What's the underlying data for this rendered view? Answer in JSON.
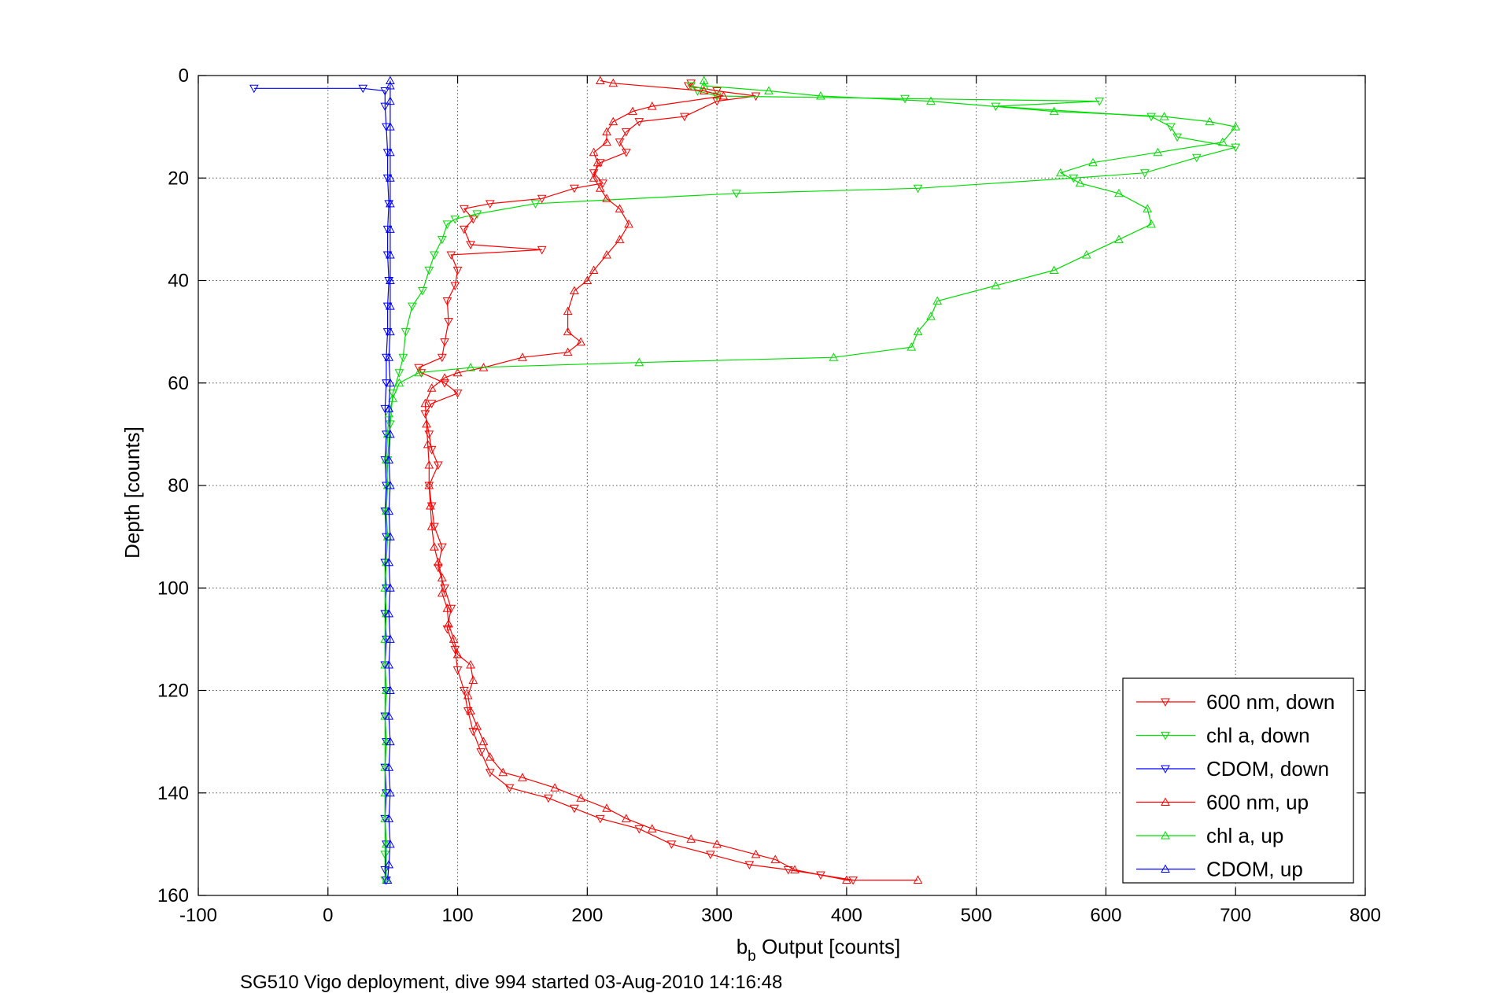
{
  "chart_data": {
    "type": "line",
    "title": "",
    "xlabel": "b",
    "xlabel_sub": "b",
    "xlabel_rest": " Output [counts]",
    "ylabel": "Depth [counts]",
    "caption": "SG510 Vigo deployment, dive 994 started 03-Aug-2010 14:16:48",
    "xlim": [
      -100,
      800
    ],
    "ylim": [
      0,
      160
    ],
    "y_reversed": true,
    "grid": true,
    "legend_position": "bottom-right",
    "xticks": [
      -100,
      0,
      100,
      200,
      300,
      400,
      500,
      600,
      700,
      800
    ],
    "yticks": [
      0,
      20,
      40,
      60,
      80,
      100,
      120,
      140,
      160
    ],
    "series": [
      {
        "name": "600 nm, down",
        "color": "#ff0000",
        "marker": "triangle-down",
        "points": [
          [
            280,
            1.5
          ],
          [
            278,
            2
          ],
          [
            300,
            3
          ],
          [
            330,
            4
          ],
          [
            300,
            5
          ],
          [
            275,
            8
          ],
          [
            240,
            9
          ],
          [
            230,
            11
          ],
          [
            225,
            13
          ],
          [
            230,
            15
          ],
          [
            210,
            17
          ],
          [
            205,
            19
          ],
          [
            212,
            21
          ],
          [
            190,
            22
          ],
          [
            165,
            24
          ],
          [
            125,
            25
          ],
          [
            105,
            26
          ],
          [
            112,
            28
          ],
          [
            105,
            30
          ],
          [
            110,
            33
          ],
          [
            165,
            34
          ],
          [
            95,
            35
          ],
          [
            100,
            38
          ],
          [
            98,
            41
          ],
          [
            92,
            44
          ],
          [
            93,
            48
          ],
          [
            90,
            52
          ],
          [
            88,
            55
          ],
          [
            70,
            57
          ],
          [
            72,
            58
          ],
          [
            90,
            60
          ],
          [
            100,
            62
          ],
          [
            80,
            64
          ],
          [
            75,
            66
          ],
          [
            78,
            70
          ],
          [
            80,
            73
          ],
          [
            85,
            76
          ],
          [
            78,
            80
          ],
          [
            80,
            84
          ],
          [
            82,
            88
          ],
          [
            88,
            92
          ],
          [
            85,
            96
          ],
          [
            90,
            100
          ],
          [
            95,
            104
          ],
          [
            92,
            108
          ],
          [
            98,
            112
          ],
          [
            100,
            116
          ],
          [
            105,
            120
          ],
          [
            108,
            124
          ],
          [
            112,
            128
          ],
          [
            118,
            132
          ],
          [
            125,
            136
          ],
          [
            140,
            139
          ],
          [
            170,
            141
          ],
          [
            190,
            143
          ],
          [
            210,
            145
          ],
          [
            240,
            147
          ],
          [
            265,
            150
          ],
          [
            295,
            152
          ],
          [
            325,
            154
          ],
          [
            355,
            155
          ],
          [
            380,
            156
          ],
          [
            405,
            157
          ]
        ]
      },
      {
        "name": "chl a, down",
        "color": "#00dd00",
        "marker": "triangle-down",
        "points": [
          [
            280,
            2
          ],
          [
            285,
            3
          ],
          [
            300,
            4
          ],
          [
            445,
            4.5
          ],
          [
            595,
            5
          ],
          [
            515,
            6
          ],
          [
            635,
            8
          ],
          [
            650,
            10
          ],
          [
            655,
            12
          ],
          [
            700,
            14
          ],
          [
            670,
            16
          ],
          [
            630,
            19
          ],
          [
            575,
            20
          ],
          [
            455,
            22
          ],
          [
            315,
            23
          ],
          [
            160,
            25
          ],
          [
            115,
            27
          ],
          [
            98,
            28
          ],
          [
            92,
            29
          ],
          [
            88,
            32
          ],
          [
            82,
            35
          ],
          [
            78,
            38
          ],
          [
            73,
            42
          ],
          [
            65,
            45
          ],
          [
            60,
            50
          ],
          [
            58,
            55
          ],
          [
            55,
            58
          ],
          [
            50,
            62
          ],
          [
            48,
            68
          ],
          [
            46,
            75
          ],
          [
            45,
            85
          ],
          [
            44,
            95
          ],
          [
            44,
            105
          ],
          [
            44,
            115
          ],
          [
            44,
            125
          ],
          [
            44,
            135
          ],
          [
            44,
            145
          ],
          [
            44,
            152
          ],
          [
            44,
            157
          ]
        ]
      },
      {
        "name": "CDOM, down",
        "color": "#0000ff",
        "marker": "triangle-down",
        "points": [
          [
            -57,
            2.5
          ],
          [
            27,
            2.5
          ],
          [
            44,
            3
          ],
          [
            44,
            6
          ],
          [
            45,
            10
          ],
          [
            46,
            15
          ],
          [
            46,
            20
          ],
          [
            47,
            25
          ],
          [
            46,
            30
          ],
          [
            46,
            35
          ],
          [
            47,
            40
          ],
          [
            46,
            45
          ],
          [
            46,
            50
          ],
          [
            45,
            55
          ],
          [
            45,
            60
          ],
          [
            44,
            65
          ],
          [
            45,
            70
          ],
          [
            44,
            75
          ],
          [
            45,
            80
          ],
          [
            44,
            85
          ],
          [
            45,
            90
          ],
          [
            44,
            95
          ],
          [
            45,
            100
          ],
          [
            44,
            105
          ],
          [
            45,
            110
          ],
          [
            44,
            115
          ],
          [
            45,
            120
          ],
          [
            44,
            125
          ],
          [
            45,
            130
          ],
          [
            44,
            135
          ],
          [
            45,
            140
          ],
          [
            44,
            145
          ],
          [
            45,
            150
          ],
          [
            44,
            155
          ],
          [
            45,
            157
          ]
        ]
      },
      {
        "name": "600 nm, up",
        "color": "#ff0000",
        "marker": "triangle-up",
        "points": [
          [
            455,
            157
          ],
          [
            400,
            157
          ],
          [
            360,
            155
          ],
          [
            345,
            153
          ],
          [
            330,
            152
          ],
          [
            300,
            150
          ],
          [
            280,
            149
          ],
          [
            250,
            147
          ],
          [
            230,
            145
          ],
          [
            215,
            143
          ],
          [
            195,
            141
          ],
          [
            175,
            139
          ],
          [
            150,
            137
          ],
          [
            135,
            136
          ],
          [
            125,
            133
          ],
          [
            120,
            130
          ],
          [
            115,
            127
          ],
          [
            110,
            124
          ],
          [
            108,
            121
          ],
          [
            112,
            118
          ],
          [
            110,
            115
          ],
          [
            100,
            113
          ],
          [
            97,
            110
          ],
          [
            93,
            107
          ],
          [
            92,
            104
          ],
          [
            88,
            101
          ],
          [
            88,
            98
          ],
          [
            85,
            95
          ],
          [
            82,
            92
          ],
          [
            80,
            88
          ],
          [
            79,
            84
          ],
          [
            78,
            80
          ],
          [
            78,
            76
          ],
          [
            77,
            72
          ],
          [
            76,
            68
          ],
          [
            75,
            64
          ],
          [
            80,
            61
          ],
          [
            90,
            59
          ],
          [
            100,
            58
          ],
          [
            120,
            57
          ],
          [
            150,
            55
          ],
          [
            185,
            54
          ],
          [
            195,
            52
          ],
          [
            185,
            50
          ],
          [
            185,
            46
          ],
          [
            190,
            42
          ],
          [
            200,
            40
          ],
          [
            205,
            38
          ],
          [
            215,
            35
          ],
          [
            225,
            32
          ],
          [
            232,
            29
          ],
          [
            225,
            26
          ],
          [
            215,
            24
          ],
          [
            210,
            22
          ],
          [
            205,
            20
          ],
          [
            208,
            17
          ],
          [
            205,
            15
          ],
          [
            215,
            13
          ],
          [
            215,
            11
          ],
          [
            220,
            9
          ],
          [
            235,
            7
          ],
          [
            250,
            6
          ],
          [
            305,
            4
          ],
          [
            290,
            3
          ],
          [
            220,
            1.5
          ],
          [
            210,
            1
          ]
        ]
      },
      {
        "name": "chl a, up",
        "color": "#00dd00",
        "marker": "triangle-up",
        "points": [
          [
            45,
            157
          ],
          [
            45,
            150
          ],
          [
            44,
            145
          ],
          [
            44,
            140
          ],
          [
            44,
            135
          ],
          [
            45,
            130
          ],
          [
            44,
            125
          ],
          [
            45,
            120
          ],
          [
            44,
            115
          ],
          [
            44,
            110
          ],
          [
            45,
            105
          ],
          [
            44,
            100
          ],
          [
            45,
            95
          ],
          [
            46,
            90
          ],
          [
            45,
            85
          ],
          [
            46,
            80
          ],
          [
            45,
            75
          ],
          [
            46,
            70
          ],
          [
            47,
            66
          ],
          [
            50,
            63
          ],
          [
            55,
            60
          ],
          [
            70,
            58
          ],
          [
            110,
            57
          ],
          [
            240,
            56
          ],
          [
            390,
            55
          ],
          [
            450,
            53
          ],
          [
            455,
            50
          ],
          [
            465,
            47
          ],
          [
            470,
            44
          ],
          [
            515,
            41
          ],
          [
            560,
            38
          ],
          [
            585,
            35
          ],
          [
            610,
            32
          ],
          [
            635,
            29
          ],
          [
            632,
            26
          ],
          [
            610,
            23
          ],
          [
            580,
            21
          ],
          [
            565,
            19
          ],
          [
            590,
            17
          ],
          [
            640,
            15
          ],
          [
            690,
            13
          ],
          [
            700,
            10
          ],
          [
            680,
            9
          ],
          [
            645,
            8
          ],
          [
            560,
            7
          ],
          [
            465,
            5
          ],
          [
            380,
            4
          ],
          [
            340,
            3
          ],
          [
            290,
            2
          ],
          [
            290,
            1
          ]
        ]
      },
      {
        "name": "CDOM, up",
        "color": "#0000ff",
        "marker": "triangle-up",
        "points": [
          [
            46,
            157
          ],
          [
            47,
            154
          ],
          [
            48,
            150
          ],
          [
            47,
            145
          ],
          [
            48,
            140
          ],
          [
            47,
            135
          ],
          [
            48,
            130
          ],
          [
            47,
            125
          ],
          [
            48,
            120
          ],
          [
            47,
            115
          ],
          [
            48,
            110
          ],
          [
            47,
            105
          ],
          [
            48,
            100
          ],
          [
            47,
            95
          ],
          [
            48,
            90
          ],
          [
            47,
            85
          ],
          [
            48,
            80
          ],
          [
            47,
            75
          ],
          [
            48,
            70
          ],
          [
            47,
            65
          ],
          [
            48,
            60
          ],
          [
            47,
            55
          ],
          [
            48,
            50
          ],
          [
            48,
            45
          ],
          [
            48,
            40
          ],
          [
            48,
            35
          ],
          [
            48,
            30
          ],
          [
            48,
            25
          ],
          [
            48,
            20
          ],
          [
            48,
            15
          ],
          [
            48,
            10
          ],
          [
            48,
            5
          ],
          [
            48,
            2
          ],
          [
            48,
            1
          ]
        ]
      }
    ]
  }
}
